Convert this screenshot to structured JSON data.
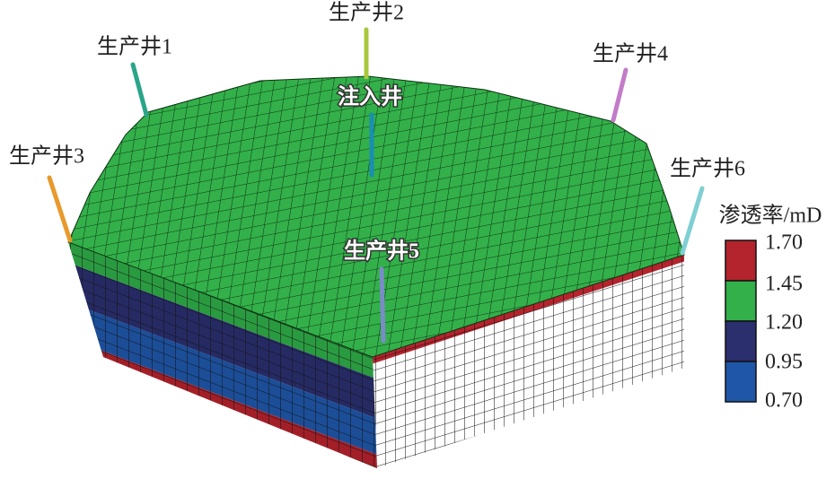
{
  "wells": [
    "生产井1",
    "生产井2",
    "生产井3",
    "生产井4",
    "生产井5",
    "生产井6"
  ],
  "injection_well": "注入井",
  "legend": {
    "title": "渗透率/mD",
    "labels": [
      "1.70",
      "1.45",
      "1.20",
      "0.95",
      "0.70"
    ]
  }
}
